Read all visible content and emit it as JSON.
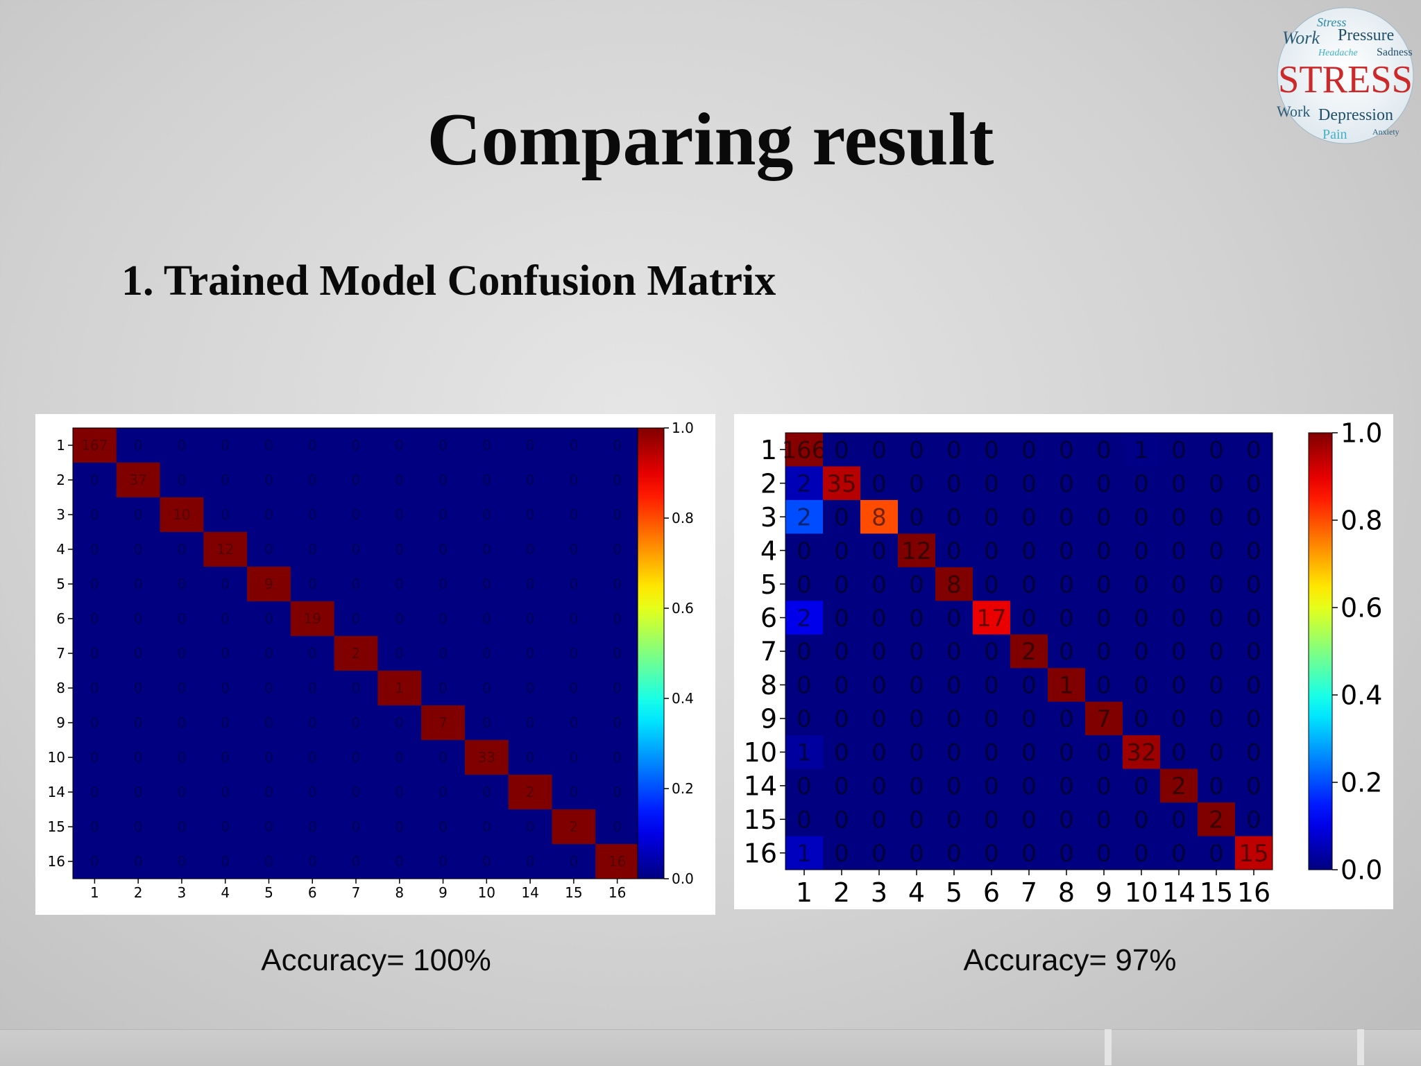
{
  "slide": {
    "title": "Comparing result",
    "subtitle": "1. Trained Model Confusion Matrix"
  },
  "logo": {
    "icon": "stress-word-cloud-logo",
    "words": [
      "Work",
      "Pressure",
      "Headache",
      "Sadness",
      "STRESS",
      "Work",
      "Depression",
      "Pain",
      "Anxiety"
    ]
  },
  "colors": {
    "matrix_background": "#00008b",
    "diagonal_high": "#8b0000",
    "slide_text": "#0a0a0a"
  },
  "chart_data": [
    {
      "type": "heatmap",
      "title": "",
      "row_labels": [
        "1",
        "2",
        "3",
        "4",
        "5",
        "6",
        "7",
        "8",
        "9",
        "10",
        "14",
        "15",
        "16"
      ],
      "col_labels": [
        "1",
        "2",
        "3",
        "4",
        "5",
        "6",
        "7",
        "8",
        "9",
        "10",
        "14",
        "15",
        "16"
      ],
      "matrix": [
        [
          167,
          0,
          0,
          0,
          0,
          0,
          0,
          0,
          0,
          0,
          0,
          0,
          0
        ],
        [
          0,
          37,
          0,
          0,
          0,
          0,
          0,
          0,
          0,
          0,
          0,
          0,
          0
        ],
        [
          0,
          0,
          10,
          0,
          0,
          0,
          0,
          0,
          0,
          0,
          0,
          0,
          0
        ],
        [
          0,
          0,
          0,
          12,
          0,
          0,
          0,
          0,
          0,
          0,
          0,
          0,
          0
        ],
        [
          0,
          0,
          0,
          0,
          9,
          0,
          0,
          0,
          0,
          0,
          0,
          0,
          0
        ],
        [
          0,
          0,
          0,
          0,
          0,
          19,
          0,
          0,
          0,
          0,
          0,
          0,
          0
        ],
        [
          0,
          0,
          0,
          0,
          0,
          0,
          2,
          0,
          0,
          0,
          0,
          0,
          0
        ],
        [
          0,
          0,
          0,
          0,
          0,
          0,
          0,
          1,
          0,
          0,
          0,
          0,
          0
        ],
        [
          0,
          0,
          0,
          0,
          0,
          0,
          0,
          0,
          7,
          0,
          0,
          0,
          0
        ],
        [
          0,
          0,
          0,
          0,
          0,
          0,
          0,
          0,
          0,
          33,
          0,
          0,
          0
        ],
        [
          0,
          0,
          0,
          0,
          0,
          0,
          0,
          0,
          0,
          0,
          2,
          0,
          0
        ],
        [
          0,
          0,
          0,
          0,
          0,
          0,
          0,
          0,
          0,
          0,
          0,
          2,
          0
        ],
        [
          0,
          0,
          0,
          0,
          0,
          0,
          0,
          0,
          0,
          0,
          0,
          0,
          16
        ]
      ],
      "colorbar": {
        "min": 0.0,
        "max": 1.0,
        "ticks": [
          "0.0",
          "0.2",
          "0.4",
          "0.6",
          "0.8",
          "1.0"
        ],
        "colormap": "jet"
      },
      "caption": "Accuracy= 100%"
    },
    {
      "type": "heatmap",
      "title": "",
      "row_labels": [
        "1",
        "2",
        "3",
        "4",
        "5",
        "6",
        "7",
        "8",
        "9",
        "10",
        "14",
        "15",
        "16"
      ],
      "col_labels": [
        "1",
        "2",
        "3",
        "4",
        "5",
        "6",
        "7",
        "8",
        "9",
        "10",
        "14",
        "15",
        "16"
      ],
      "matrix": [
        [
          166,
          0,
          0,
          0,
          0,
          0,
          0,
          0,
          0,
          1,
          0,
          0,
          0
        ],
        [
          2,
          35,
          0,
          0,
          0,
          0,
          0,
          0,
          0,
          0,
          0,
          0,
          0
        ],
        [
          2,
          0,
          8,
          0,
          0,
          0,
          0,
          0,
          0,
          0,
          0,
          0,
          0
        ],
        [
          0,
          0,
          0,
          12,
          0,
          0,
          0,
          0,
          0,
          0,
          0,
          0,
          0
        ],
        [
          0,
          0,
          0,
          0,
          8,
          0,
          0,
          0,
          0,
          0,
          0,
          0,
          0
        ],
        [
          2,
          0,
          0,
          0,
          0,
          17,
          0,
          0,
          0,
          0,
          0,
          0,
          0
        ],
        [
          0,
          0,
          0,
          0,
          0,
          0,
          2,
          0,
          0,
          0,
          0,
          0,
          0
        ],
        [
          0,
          0,
          0,
          0,
          0,
          0,
          0,
          1,
          0,
          0,
          0,
          0,
          0
        ],
        [
          0,
          0,
          0,
          0,
          0,
          0,
          0,
          0,
          7,
          0,
          0,
          0,
          0
        ],
        [
          1,
          0,
          0,
          0,
          0,
          0,
          0,
          0,
          0,
          32,
          0,
          0,
          0
        ],
        [
          0,
          0,
          0,
          0,
          0,
          0,
          0,
          0,
          0,
          0,
          2,
          0,
          0
        ],
        [
          0,
          0,
          0,
          0,
          0,
          0,
          0,
          0,
          0,
          0,
          0,
          2,
          0
        ],
        [
          1,
          0,
          0,
          0,
          0,
          0,
          0,
          0,
          0,
          0,
          0,
          0,
          15
        ]
      ],
      "colorbar": {
        "min": 0.0,
        "max": 1.0,
        "ticks": [
          "0.0",
          "0.2",
          "0.4",
          "0.6",
          "0.8",
          "1.0"
        ],
        "colormap": "jet"
      },
      "caption": "Accuracy= 97%"
    }
  ]
}
